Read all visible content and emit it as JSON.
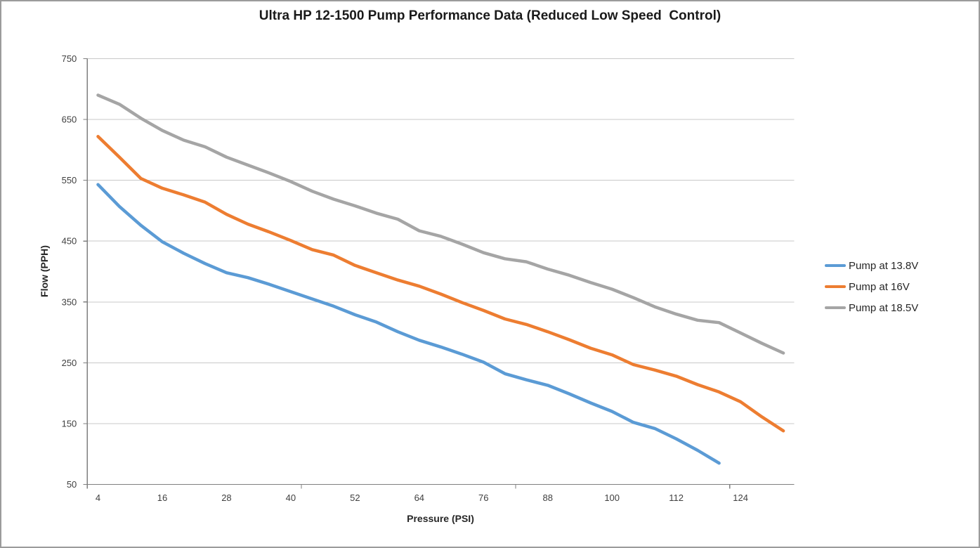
{
  "title": "Ultra HP 12-1500 Pump Performance Data (Reduced Low Speed  Control)",
  "chart_data": {
    "type": "line",
    "title": "Ultra HP 12-1500 Pump Performance Data (Reduced Low Speed  Control)",
    "xlabel": "Pressure (PSI)",
    "ylabel": "Flow (PPH)",
    "x": [
      4,
      8,
      12,
      16,
      20,
      24,
      28,
      32,
      36,
      40,
      44,
      48,
      52,
      56,
      60,
      64,
      68,
      72,
      76,
      80,
      84,
      88,
      92,
      96,
      100,
      104,
      108,
      112,
      116,
      120,
      124,
      128,
      132
    ],
    "x_tick_labels": [
      "4",
      "16",
      "28",
      "40",
      "52",
      "64",
      "76",
      "88",
      "100",
      "112",
      "124"
    ],
    "y_ticks": [
      50,
      150,
      250,
      350,
      450,
      550,
      650,
      750
    ],
    "ylim": [
      50,
      750
    ],
    "grid": "horizontal-major",
    "legend_position": "right-middle",
    "axis_color": "#7f7f7f",
    "gridline_color": "#c9c9c9",
    "tick_label_color": "#404040",
    "series": [
      {
        "name": "Pump at 13.8V",
        "color": "#5B9BD5",
        "values": [
          543,
          507,
          476,
          449,
          430,
          413,
          398,
          390,
          379,
          367,
          355,
          343,
          329,
          317,
          301,
          287,
          276,
          264,
          251,
          232,
          222,
          213,
          199,
          184,
          170,
          152,
          142,
          125,
          106,
          85
        ]
      },
      {
        "name": "Pump at 16V",
        "color": "#ED7D31",
        "values": [
          622,
          588,
          553,
          537,
          526,
          514,
          494,
          478,
          465,
          451,
          436,
          427,
          410,
          398,
          386,
          376,
          363,
          349,
          336,
          322,
          313,
          301,
          288,
          274,
          263,
          247,
          238,
          228,
          214,
          202,
          186,
          161,
          138
        ]
      },
      {
        "name": "Pump at 18.5V",
        "color": "#A5A5A5",
        "values": [
          690,
          675,
          652,
          632,
          616,
          605,
          588,
          575,
          562,
          548,
          532,
          519,
          508,
          496,
          486,
          467,
          458,
          445,
          431,
          421,
          416,
          404,
          394,
          382,
          371,
          357,
          342,
          330,
          320,
          316,
          299,
          282,
          266
        ]
      }
    ]
  }
}
